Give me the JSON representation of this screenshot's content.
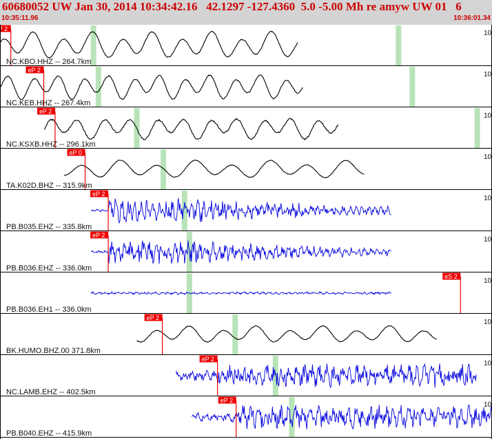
{
  "header": {
    "title": "60680052 UW Jan 30, 2014 10:34:42.16   42.1297 -127.4360  5.0 -5.00 Mh re amyw UW 01   6",
    "time_start": "10:35:11.96",
    "time_end": "10:36:01.34"
  },
  "colors": {
    "header_bg": "#d4d4d4",
    "header_text": "#cc0000",
    "pick": "#ee0000",
    "band": "#b8e3b8",
    "trace_black": "#000000",
    "trace_blue": "#0000dd"
  },
  "panels": [
    {
      "label": "NC.KBO.HHZ -- 264.7km",
      "pick": "eP 2",
      "edge": "10",
      "color": "black",
      "pick_t": 0.022,
      "bands": [
        0.19,
        0.81
      ],
      "start": 0.0,
      "end": 0.605,
      "freq": 10,
      "amp": 0.68,
      "noise": 0.06,
      "shape": "long"
    },
    {
      "label": "NC.KEB.HHZ -- 267.4km",
      "pick": "eP 2",
      "edge": "10",
      "color": "black",
      "pick_t": 0.089,
      "bands": [
        0.2,
        0.838
      ],
      "start": 0.0,
      "end": 0.615,
      "freq": 12,
      "amp": 0.62,
      "noise": 0.08,
      "shape": "long"
    },
    {
      "label": "NC.KSXB.HHZ -- 296.1km",
      "pick": "eP 2",
      "edge": "10",
      "color": "black",
      "pick_t": 0.112,
      "bands": [
        0.278,
        0.97
      ],
      "start": 0.09,
      "end": 0.687,
      "freq": 11,
      "amp": 0.55,
      "noise": 0.12,
      "shape": "long"
    },
    {
      "label": "TA.K02D.BHZ -- 315.9km",
      "pick": "eP 0",
      "edge": "10",
      "color": "black",
      "pick_t": 0.173,
      "bands": [
        0.332
      ],
      "start": 0.13,
      "end": 0.74,
      "freq": 8,
      "amp": 0.45,
      "noise": 0.07,
      "shape": "long"
    },
    {
      "label": "PB.B035.EHZ -- 335.8km",
      "pick": "eP 2",
      "edge": "10",
      "color": "blue",
      "pick_t": 0.22,
      "bands": [
        0.375
      ],
      "start": 0.185,
      "end": 0.795,
      "freq": 95,
      "amp": 0.55,
      "noise": 0.5,
      "shape": "burst"
    },
    {
      "label": "PB.B036.EHZ -- 336.0km",
      "pick": "eP 2",
      "edge": "10",
      "color": "blue",
      "pick_t": 0.22,
      "bands": [
        0.385
      ],
      "start": 0.185,
      "end": 0.795,
      "freq": 95,
      "amp": 0.5,
      "noise": 0.5,
      "shape": "burst"
    },
    {
      "label": "PB.B036.EH1 -- 336.0km",
      "pick": "eS 2",
      "edge": "10",
      "color": "blue",
      "pick_t": 0.936,
      "bands": [
        0.385
      ],
      "start": 0.185,
      "end": 0.795,
      "freq": 95,
      "amp": 0.5,
      "noise": 0.5,
      "shape": "burst"
    },
    {
      "label": "BK.HUMO.BHZ.00 371.8km",
      "pick": "eP 2",
      "edge": "10",
      "color": "black",
      "pick_t": 0.33,
      "bands": [
        0.478
      ],
      "start": 0.278,
      "end": 0.888,
      "freq": 9,
      "amp": 0.42,
      "noise": 0.08,
      "shape": "long"
    },
    {
      "label": "NC.LAMB.EHZ -- 402.5km",
      "pick": "eP 2",
      "edge": "10",
      "color": "blue",
      "pick_t": 0.442,
      "bands": [
        0.56
      ],
      "start": 0.358,
      "end": 0.968,
      "freq": 80,
      "amp": 0.48,
      "noise": 0.55,
      "shape": "noisy"
    },
    {
      "label": "PB.B040.EHZ -- 415.9km",
      "pick": "eP 2",
      "edge": "10",
      "color": "blue",
      "pick_t": 0.48,
      "bands": [
        0.593
      ],
      "start": 0.39,
      "end": 1.0,
      "freq": 80,
      "amp": 0.48,
      "noise": 0.55,
      "shape": "noisy"
    }
  ]
}
